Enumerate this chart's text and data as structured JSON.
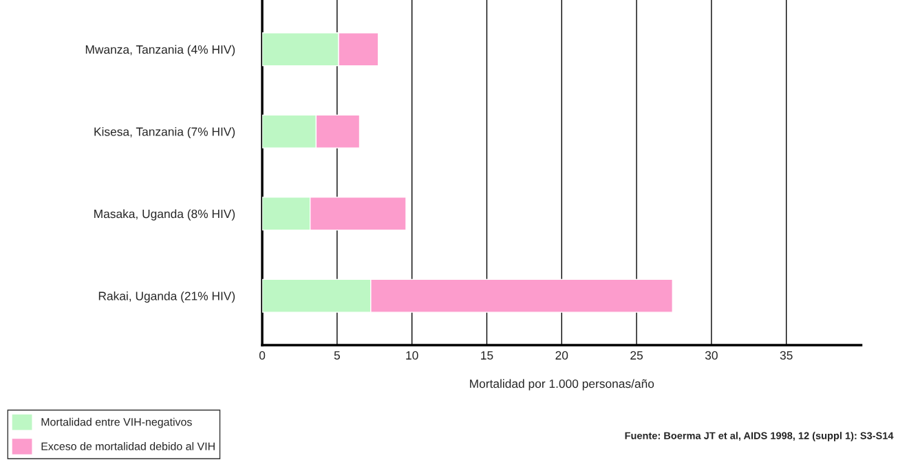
{
  "chart_data": {
    "type": "bar",
    "orientation": "horizontal",
    "stacked": true,
    "categories": [
      "Mwanza, Tanzania (4% HIV)",
      "Kisesa, Tanzania (7% HIV)",
      "Masaka, Uganda (8% HIV)",
      "Rakai, Uganda (21% HIV)"
    ],
    "series": [
      {
        "name": "Mortalidad entre VIH-negativos",
        "color": "#bdf7c4",
        "values": [
          5.1,
          3.6,
          3.2,
          7.25
        ]
      },
      {
        "name": "Exceso de mortalidad debido al VIH",
        "color": "#fc9ccc",
        "values": [
          2.65,
          2.9,
          6.4,
          20.15
        ]
      }
    ],
    "xlabel": "Mortalidad por 1.000 personas/año",
    "xlim": [
      0,
      40
    ],
    "xticks": [
      0,
      5,
      10,
      15,
      20,
      25,
      30,
      35
    ],
    "grid": "x",
    "legend": "bottom left",
    "annotations": [
      "Fuente: Boerma JT et al, AIDS 1998, 12 (suppl 1): S3-S14"
    ]
  }
}
